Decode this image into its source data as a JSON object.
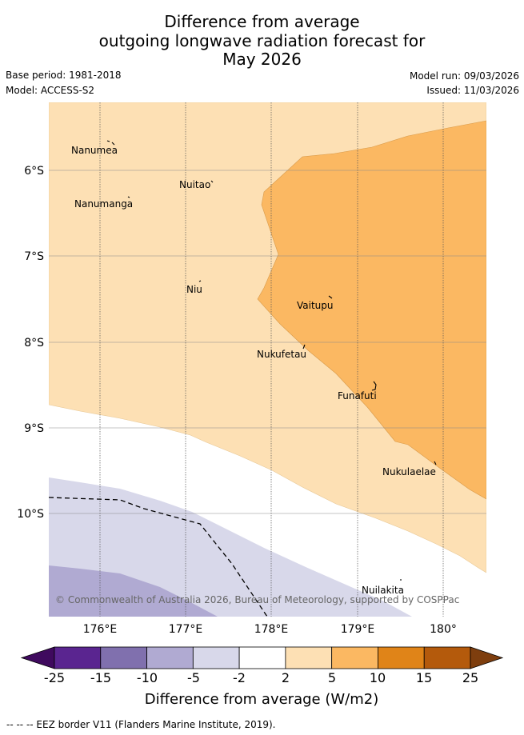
{
  "title": {
    "line1": "Difference from average",
    "line2": "outgoing longwave radiation forecast for",
    "line3": "May 2026"
  },
  "meta": {
    "base_period": "Base period: 1981-2018",
    "model": "Model: ACCESS-S2",
    "model_run": "Model run: 09/03/2026",
    "issued": "Issued: 11/03/2026"
  },
  "map": {
    "lat_labels": [
      "6°S",
      "7°S",
      "8°S",
      "9°S",
      "10°S"
    ],
    "lon_labels": [
      "176°E",
      "177°E",
      "178°E",
      "179°E",
      "180°"
    ],
    "islands": [
      "Nanumea",
      "Nuitao",
      "Nanumanga",
      "Niu",
      "Vaitupu",
      "Nukufetau",
      "Funafuti",
      "Nukulaelae",
      "Nuilakita"
    ],
    "copyright": "© Commonwealth of Australia 2026, Bureau of Meteorology, supported by COSPPac"
  },
  "colorbar": {
    "tick_labels": [
      "-25",
      "-15",
      "-10",
      "-5",
      "-2",
      "2",
      "5",
      "10",
      "15",
      "25"
    ],
    "colors": [
      "#3f0a5e",
      "#5a2590",
      "#8070ae",
      "#b0aad2",
      "#d8d8ea",
      "#ffffff",
      "#fde0b4",
      "#fbb862",
      "#e08418",
      "#b45a0c",
      "#7e3e0e"
    ],
    "label": "Difference from average (W/m2)"
  },
  "footnote": "--  --  -- EEZ border V11 (Flanders Marine Institute, 2019)."
}
